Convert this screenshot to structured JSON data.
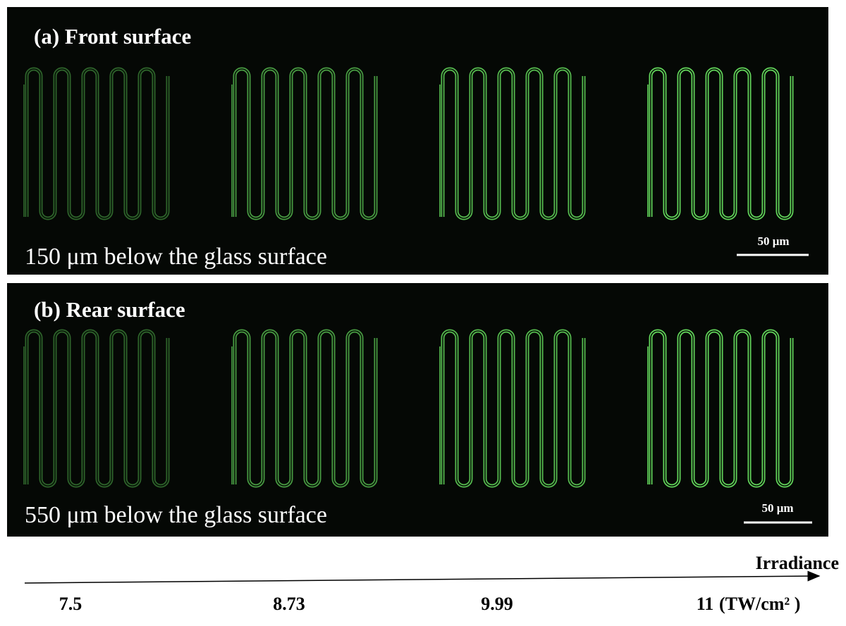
{
  "panels": [
    {
      "label": "(a) Front surface",
      "depth": "150 μm below the glass surface",
      "scale_bar": "50 μm"
    },
    {
      "label": "(b) Rear surface",
      "depth": "550 μm below the glass surface",
      "scale_bar": "50 μm"
    }
  ],
  "axis": {
    "title": "Irradiance",
    "ticks": [
      "7.5",
      "8.73",
      "9.99",
      "11"
    ],
    "unit": "(TW/cm² )"
  }
}
